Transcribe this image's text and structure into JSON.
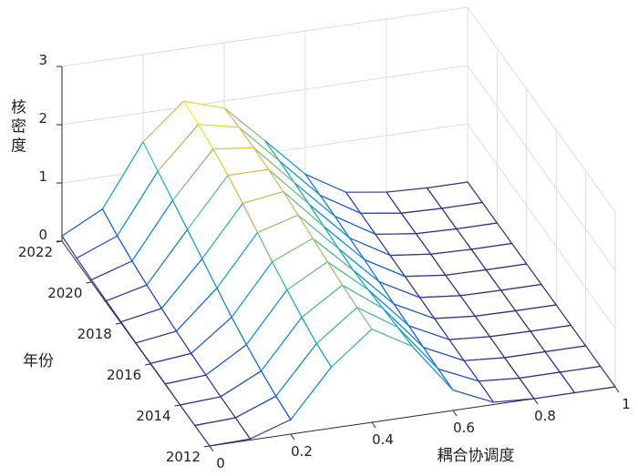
{
  "chart_data": {
    "type": "surface",
    "xlabel": "耦合协调度",
    "ylabel": "年份",
    "zlabel": "核密度",
    "x": [
      0,
      0.1,
      0.2,
      0.3,
      0.4,
      0.5,
      0.6,
      0.7,
      0.8,
      0.9,
      1
    ],
    "y": [
      2012,
      2013,
      2014,
      2015,
      2016,
      2017,
      2018,
      2019,
      2020,
      2021,
      2022
    ],
    "z": [
      [
        0.0,
        0.02,
        0.25,
        1.05,
        1.6,
        1.2,
        0.35,
        0.04,
        0.0,
        0.0,
        0.0
      ],
      [
        0.0,
        0.03,
        0.3,
        1.1,
        1.62,
        1.18,
        0.36,
        0.05,
        0.0,
        0.0,
        0.0
      ],
      [
        0.0,
        0.04,
        0.38,
        1.2,
        1.65,
        1.15,
        0.38,
        0.05,
        0.0,
        0.0,
        0.0
      ],
      [
        0.01,
        0.06,
        0.48,
        1.32,
        1.7,
        1.12,
        0.4,
        0.06,
        0.01,
        0.0,
        0.0
      ],
      [
        0.01,
        0.08,
        0.6,
        1.45,
        1.75,
        1.1,
        0.42,
        0.07,
        0.01,
        0.0,
        0.0
      ],
      [
        0.01,
        0.11,
        0.75,
        1.6,
        1.8,
        1.12,
        0.45,
        0.08,
        0.01,
        0.0,
        0.0
      ],
      [
        0.02,
        0.15,
        0.9,
        1.75,
        1.85,
        1.15,
        0.48,
        0.09,
        0.01,
        0.0,
        0.0
      ],
      [
        0.03,
        0.2,
        1.05,
        1.88,
        1.88,
        1.18,
        0.5,
        0.1,
        0.02,
        0.0,
        0.0
      ],
      [
        0.04,
        0.26,
        1.2,
        1.98,
        1.9,
        1.2,
        0.52,
        0.11,
        0.02,
        0.0,
        0.0
      ],
      [
        0.06,
        0.34,
        1.35,
        2.05,
        1.9,
        1.22,
        0.53,
        0.12,
        0.02,
        0.0,
        0.0
      ],
      [
        0.09,
        0.45,
        1.5,
        2.1,
        1.88,
        1.22,
        0.54,
        0.13,
        0.03,
        0.0,
        0.0
      ]
    ],
    "xlim": [
      0,
      1
    ],
    "ylim": [
      2012,
      2022
    ],
    "zlim": [
      0,
      3
    ],
    "xticks": [
      0,
      0.2,
      0.4,
      0.6,
      0.8,
      1
    ],
    "yticks": [
      2012,
      2014,
      2016,
      2018,
      2020,
      2022
    ],
    "zticks": [
      0,
      1,
      2,
      3
    ],
    "grid": true,
    "colormap": "parula"
  }
}
